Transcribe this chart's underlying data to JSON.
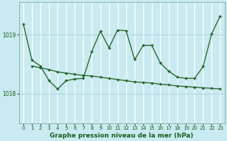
{
  "xlabel": "Graphe pression niveau de la mer (hPa)",
  "background_color": "#c8eaf0",
  "grid_color_v": "#ffffff",
  "grid_color_h": "#b0d8e0",
  "line_color": "#1a5c1a",
  "ylim": [
    1017.5,
    1019.55
  ],
  "yticks": [
    1018,
    1019
  ],
  "xlim": [
    -0.5,
    23.5
  ],
  "xticks": [
    0,
    1,
    2,
    3,
    4,
    5,
    6,
    7,
    8,
    9,
    10,
    11,
    12,
    13,
    14,
    15,
    16,
    17,
    18,
    19,
    20,
    21,
    22,
    23
  ],
  "series1_x": [
    0,
    1,
    2,
    3,
    4,
    5,
    6,
    7,
    8,
    9,
    10,
    11,
    12,
    13,
    14,
    15,
    16,
    17,
    18,
    19,
    20,
    21,
    22,
    23
  ],
  "series1_y": [
    1019.18,
    1018.57,
    1018.47,
    1018.22,
    1018.08,
    1018.22,
    1018.25,
    1018.26,
    1018.72,
    1019.06,
    1018.78,
    1019.08,
    1019.07,
    1018.58,
    1018.82,
    1018.82,
    1018.52,
    1018.38,
    1018.28,
    1018.26,
    1018.26,
    1018.46,
    1019.02,
    1019.32
  ],
  "series2_x": [
    1,
    2,
    3,
    4,
    5,
    6,
    7,
    8,
    9,
    10,
    11,
    12,
    13,
    14,
    15,
    16,
    17,
    18,
    19,
    20,
    21,
    22,
    23
  ],
  "series2_y": [
    1018.47,
    1018.44,
    1018.41,
    1018.37,
    1018.35,
    1018.33,
    1018.31,
    1018.3,
    1018.28,
    1018.26,
    1018.24,
    1018.22,
    1018.2,
    1018.19,
    1018.18,
    1018.16,
    1018.15,
    1018.13,
    1018.12,
    1018.11,
    1018.1,
    1018.09,
    1018.08
  ]
}
